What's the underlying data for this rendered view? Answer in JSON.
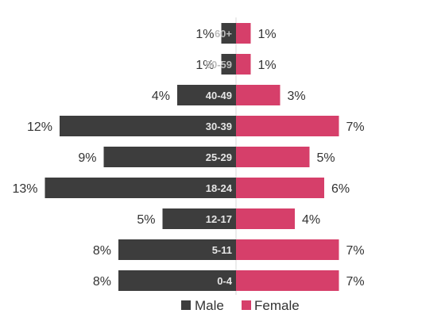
{
  "chart_data": {
    "type": "bar",
    "orientation": "horizontal-diverging",
    "categories": [
      "60+",
      "50-59",
      "40-49",
      "30-39",
      "25-29",
      "18-24",
      "12-17",
      "5-11",
      "0-4"
    ],
    "series": [
      {
        "name": "Male",
        "values": [
          1,
          1,
          4,
          12,
          9,
          13,
          5,
          8,
          8
        ],
        "labels": [
          "1%",
          "1%",
          "4%",
          "12%",
          "9%",
          "13%",
          "5%",
          "8%",
          "8%"
        ],
        "color": "#3d3d3d"
      },
      {
        "name": "Female",
        "values": [
          1,
          1,
          3,
          7,
          5,
          6,
          4,
          7,
          7
        ],
        "labels": [
          "1%",
          "1%",
          "3%",
          "7%",
          "5%",
          "6%",
          "4%",
          "7%",
          "7%"
        ],
        "color": "#d63f6a"
      }
    ],
    "legend": "bottom-center",
    "grid": false
  }
}
